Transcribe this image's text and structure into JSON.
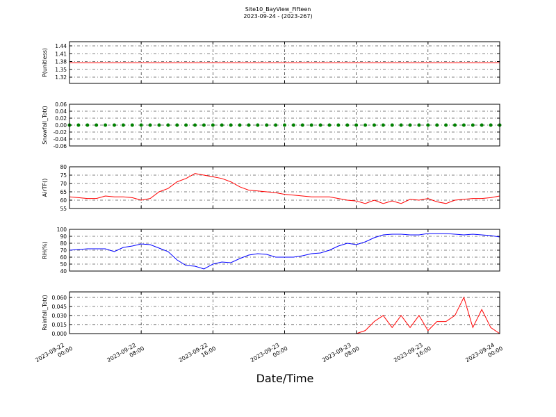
{
  "chart_data": {
    "type": "line",
    "title": "Site10_BayView_Fifteen",
    "subtitle": "2023-09-24 - (2023-267)",
    "xlabel": "Date/Time",
    "xlim": [
      "2023-09-22 00:00",
      "2023-09-24 00:00"
    ],
    "xticks": [
      "2023-09-22 00:00",
      "2023-09-22 08:00",
      "2023-09-22 16:00",
      "2023-09-23 00:00",
      "2023-09-23 08:00",
      "2023-09-23 16:00",
      "2023-09-24 00:00"
    ],
    "x": [
      "2023-09-22 00:00",
      "2023-09-22 01:00",
      "2023-09-22 02:00",
      "2023-09-22 03:00",
      "2023-09-22 04:00",
      "2023-09-22 05:00",
      "2023-09-22 06:00",
      "2023-09-22 07:00",
      "2023-09-22 08:00",
      "2023-09-22 09:00",
      "2023-09-22 10:00",
      "2023-09-22 11:00",
      "2023-09-22 12:00",
      "2023-09-22 13:00",
      "2023-09-22 14:00",
      "2023-09-22 15:00",
      "2023-09-22 16:00",
      "2023-09-22 17:00",
      "2023-09-22 18:00",
      "2023-09-22 19:00",
      "2023-09-22 20:00",
      "2023-09-22 21:00",
      "2023-09-22 22:00",
      "2023-09-22 23:00",
      "2023-09-23 00:00",
      "2023-09-23 01:00",
      "2023-09-23 02:00",
      "2023-09-23 03:00",
      "2023-09-23 04:00",
      "2023-09-23 05:00",
      "2023-09-23 06:00",
      "2023-09-23 07:00",
      "2023-09-23 08:00",
      "2023-09-23 09:00",
      "2023-09-23 10:00",
      "2023-09-23 11:00",
      "2023-09-23 12:00",
      "2023-09-23 13:00",
      "2023-09-23 14:00",
      "2023-09-23 15:00",
      "2023-09-23 16:00",
      "2023-09-23 17:00",
      "2023-09-23 18:00",
      "2023-09-23 19:00",
      "2023-09-23 20:00",
      "2023-09-23 21:00",
      "2023-09-23 22:00",
      "2023-09-23 23:00",
      "2023-09-24 00:00"
    ],
    "grid": true,
    "panels": [
      {
        "ylabel": "P(unitless)",
        "ylim": [
          1.296,
          1.456
        ],
        "yticks": [
          1.32,
          1.35,
          1.38,
          1.41,
          1.44
        ],
        "color": "#ff0000",
        "style": "line",
        "values": [
          1.375,
          1.375,
          1.375,
          1.375,
          1.375,
          1.375,
          1.375,
          1.375,
          1.375,
          1.375,
          1.375,
          1.375,
          1.375,
          1.375,
          1.375,
          1.375,
          1.375,
          1.375,
          1.375,
          1.375,
          1.375,
          1.375,
          1.375,
          1.375,
          1.375,
          1.375,
          1.375,
          1.375,
          1.375,
          1.375,
          1.375,
          1.375,
          1.375,
          1.375,
          1.375,
          1.375,
          1.375,
          1.375,
          1.375,
          1.375,
          1.375,
          1.375,
          1.375,
          1.375,
          1.375,
          1.375,
          1.375,
          1.375,
          1.375
        ]
      },
      {
        "ylabel": "Snowfall_Tot()",
        "ylim": [
          -0.06,
          0.06
        ],
        "yticks": [
          -0.06,
          -0.04,
          -0.02,
          {
            "value": 0,
            "label": "0.00"
          },
          0.02,
          0.04,
          0.06
        ],
        "color": "#008000",
        "style": "markers",
        "values": [
          0,
          0,
          0,
          0,
          0,
          0,
          0,
          0,
          0,
          0,
          0,
          0,
          0,
          0,
          0,
          0,
          0,
          0,
          0,
          0,
          0,
          0,
          0,
          0,
          0,
          0,
          0,
          0,
          0,
          0,
          0,
          0,
          0,
          0,
          0,
          0,
          0,
          0,
          0,
          0,
          0,
          0,
          0,
          0,
          0,
          0,
          0,
          0,
          0
        ]
      },
      {
        "ylabel": "AirTF()",
        "ylim": [
          55,
          80
        ],
        "yticks": [
          55,
          60,
          65,
          70,
          75,
          80
        ],
        "color": "#ff0000",
        "style": "line",
        "values": [
          62,
          61.5,
          61,
          61,
          62.5,
          62,
          62,
          61.5,
          60,
          61,
          65,
          67,
          71,
          73,
          76,
          75,
          74,
          73,
          71,
          68,
          66,
          65.5,
          65,
          64.5,
          63.5,
          63,
          62.5,
          62,
          62,
          62,
          61,
          60,
          59.5,
          58,
          60,
          58,
          59.5,
          58,
          60.5,
          60,
          61,
          59,
          58,
          60,
          60.5,
          61,
          61,
          61.5,
          62.5
        ]
      },
      {
        "ylabel": "RH(%)",
        "ylim": [
          40,
          100
        ],
        "yticks": [
          40,
          50,
          60,
          70,
          80,
          90,
          100
        ],
        "color": "#0000ff",
        "style": "line",
        "values": [
          70,
          71,
          72,
          72,
          72,
          68,
          74,
          76,
          79,
          78,
          73,
          68,
          56,
          48,
          47,
          43,
          50,
          53,
          52,
          58,
          63,
          65,
          64,
          60,
          60,
          60,
          62,
          65,
          66,
          70,
          76,
          80,
          78,
          82,
          88,
          92,
          93,
          93,
          92,
          92,
          94,
          94,
          94,
          93,
          92,
          93,
          92,
          91,
          89
        ]
      },
      {
        "ylabel": "Rainfall_Tot()",
        "ylim": [
          0,
          0.069
        ],
        "yticks": [
          {
            "value": 0,
            "label": "0.000"
          },
          {
            "value": 0.015,
            "label": "0.015"
          },
          {
            "value": 0.03,
            "label": "0.030"
          },
          {
            "value": 0.045,
            "label": "0.045"
          },
          {
            "value": 0.06,
            "label": "0.060"
          }
        ],
        "color": "#ff0000",
        "style": "line",
        "values": [
          0,
          0,
          0,
          0,
          0,
          0,
          0,
          0,
          0,
          0,
          0,
          0,
          0,
          0,
          0,
          0,
          0,
          0,
          0,
          0,
          0,
          0,
          0,
          0,
          0,
          0,
          0,
          0,
          0,
          0,
          0,
          0,
          0,
          0.005,
          0.02,
          0.03,
          0.01,
          0.03,
          0.01,
          0.03,
          0.005,
          0.02,
          0.02,
          0.03,
          0.06,
          0.01,
          0.04,
          0.01,
          0
        ]
      }
    ]
  }
}
